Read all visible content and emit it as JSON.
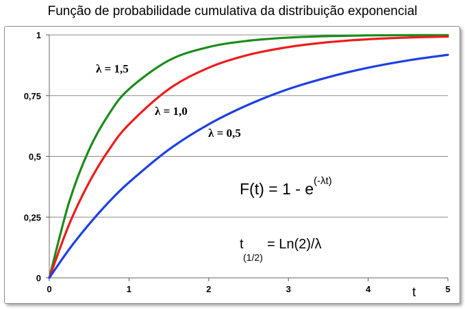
{
  "chart_data": {
    "type": "line",
    "title": "Função de probabilidade cumulativa da distribuição exponencial",
    "xlabel": "t",
    "ylabel": "",
    "xlim": [
      0,
      5
    ],
    "ylim": [
      0,
      1
    ],
    "x_ticks": [
      "0",
      "1",
      "2",
      "3",
      "4",
      "5"
    ],
    "y_ticks": [
      "0",
      "0,25",
      "0,5",
      "0,75",
      "1"
    ],
    "grid": "horizontal",
    "x": [
      0,
      0.25,
      0.5,
      0.75,
      1,
      1.5,
      2,
      2.5,
      3,
      3.5,
      4,
      4.5,
      5
    ],
    "series": [
      {
        "name": "λ = 1,5",
        "color": "#1a8c1a",
        "values": [
          0,
          0.313,
          0.528,
          0.675,
          0.777,
          0.895,
          0.95,
          0.976,
          0.989,
          0.995,
          0.998,
          0.999,
          0.999
        ]
      },
      {
        "name": "λ = 1,0",
        "color": "#ee1c1c",
        "values": [
          0,
          0.221,
          0.393,
          0.528,
          0.632,
          0.777,
          0.865,
          0.918,
          0.95,
          0.97,
          0.982,
          0.989,
          0.993
        ]
      },
      {
        "name": "λ = 0,5",
        "color": "#1c3fe6",
        "values": [
          0,
          0.118,
          0.221,
          0.313,
          0.393,
          0.528,
          0.632,
          0.713,
          0.777,
          0.826,
          0.865,
          0.895,
          0.918
        ]
      }
    ],
    "annotations": {
      "formula_main": "F(t) = 1 - e",
      "formula_exp": "(-λt)",
      "halflife_t": "t",
      "halflife_sub": "(1/2)",
      "halflife_rest": "= Ln(2)/λ"
    }
  }
}
